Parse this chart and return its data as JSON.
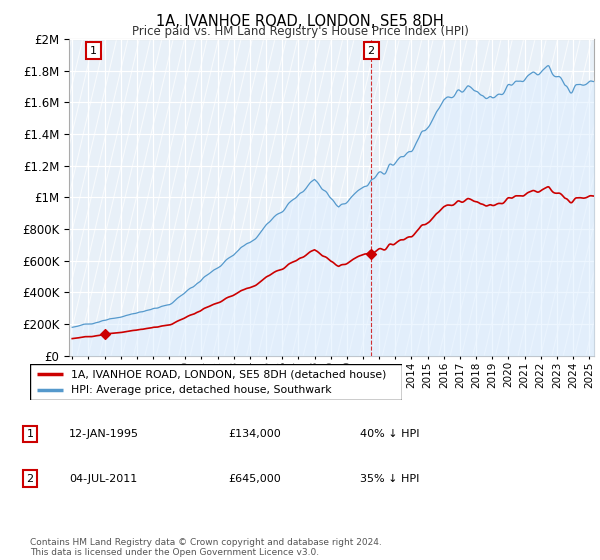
{
  "title": "1A, IVANHOE ROAD, LONDON, SE5 8DH",
  "subtitle": "Price paid vs. HM Land Registry's House Price Index (HPI)",
  "legend_line1": "1A, IVANHOE ROAD, LONDON, SE5 8DH (detached house)",
  "legend_line2": "HPI: Average price, detached house, Southwark",
  "annotation1_date": "12-JAN-1995",
  "annotation1_price": "£134,000",
  "annotation1_hpi": "40% ↓ HPI",
  "annotation2_date": "04-JUL-2011",
  "annotation2_price": "£645,000",
  "annotation2_hpi": "35% ↓ HPI",
  "footer": "Contains HM Land Registry data © Crown copyright and database right 2024.\nThis data is licensed under the Open Government Licence v3.0.",
  "price_color": "#cc0000",
  "hpi_color": "#5599cc",
  "hpi_fill_color": "#ddeeff",
  "background_color": "#ffffff",
  "plot_bg_color": "#e8f0f8",
  "grid_color": "#ffffff",
  "ylim": [
    0,
    2000000
  ],
  "yticks": [
    0,
    200000,
    400000,
    600000,
    800000,
    1000000,
    1200000,
    1400000,
    1600000,
    1800000,
    2000000
  ],
  "sale1_year": 1995.03,
  "sale1_price": 134000,
  "sale2_year": 2011.5,
  "sale2_price": 645000,
  "xstart": 1993.0,
  "xend": 2025.3
}
